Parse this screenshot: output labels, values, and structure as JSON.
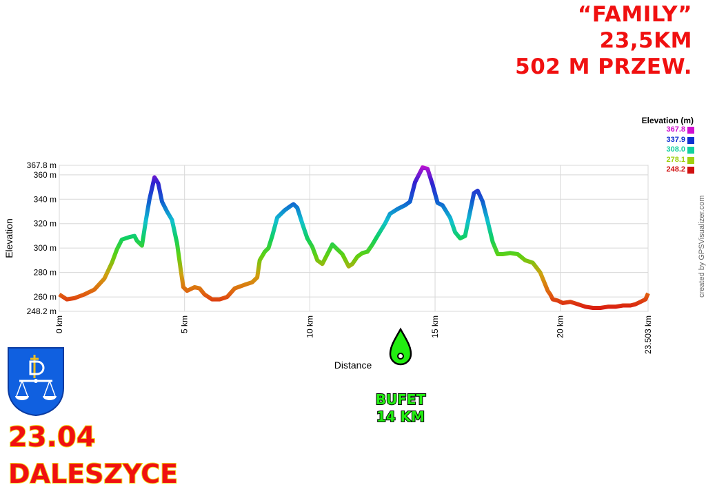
{
  "header": {
    "line1": "“FAMILY”",
    "line2": "23,5KM",
    "line3": "502 M PRZEW."
  },
  "legend": {
    "title": "Elevation (m)",
    "items": [
      {
        "label": "367.8",
        "color": "#d010d0"
      },
      {
        "label": "337.9",
        "color": "#1030d0"
      },
      {
        "label": "308.0",
        "color": "#10d0a0"
      },
      {
        "label": "278.1",
        "color": "#a0d010"
      },
      {
        "label": "248.2",
        "color": "#d01010"
      }
    ]
  },
  "watermark": "created by GPSVisualizer.com",
  "bufet": {
    "line1": "BUFET",
    "line2": "14 KM",
    "icon": "water-drop-icon",
    "color": "#22ee11"
  },
  "event": {
    "date": "23.04",
    "place": "DALESZYCE"
  },
  "chart_data": {
    "type": "line",
    "xlabel": "Distance",
    "ylabel": "Elevation",
    "xlim": [
      0,
      23.503
    ],
    "ylim": [
      248.2,
      367.8
    ],
    "x_ticks": [
      {
        "value": 0,
        "label": "0 km"
      },
      {
        "value": 5,
        "label": "5 km"
      },
      {
        "value": 10,
        "label": "10 km"
      },
      {
        "value": 15,
        "label": "15 km"
      },
      {
        "value": 20,
        "label": "20 km"
      },
      {
        "value": 23.503,
        "label": "23.503 km"
      }
    ],
    "y_ticks": [
      {
        "value": 248.2,
        "label": "248.2 m"
      },
      {
        "value": 260,
        "label": "260 m"
      },
      {
        "value": 280,
        "label": "280 m"
      },
      {
        "value": 300,
        "label": "300 m"
      },
      {
        "value": 320,
        "label": "320 m"
      },
      {
        "value": 340,
        "label": "340 m"
      },
      {
        "value": 360,
        "label": "360 m"
      },
      {
        "value": 367.8,
        "label": "367.8 m"
      }
    ],
    "grid": true,
    "series": [
      {
        "x": [
          0,
          0.3,
          0.6,
          1,
          1.4,
          1.8,
          2.1,
          2.3,
          2.5,
          2.8,
          3.0,
          3.1,
          3.3,
          3.45,
          3.6,
          3.8,
          3.95,
          4.1,
          4.3,
          4.5,
          4.7,
          4.85,
          4.95,
          5.1,
          5.4,
          5.6,
          5.8,
          6.1,
          6.4,
          6.7,
          7.0,
          7.4,
          7.7,
          7.9,
          8.0,
          8.2,
          8.35,
          8.5,
          8.7,
          9.0,
          9.2,
          9.35,
          9.5,
          9.7,
          9.9,
          10.1,
          10.3,
          10.5,
          10.7,
          10.9,
          11.1,
          11.3,
          11.55,
          11.7,
          11.9,
          12.1,
          12.3,
          12.5,
          12.7,
          13.0,
          13.2,
          13.5,
          13.8,
          14.0,
          14.2,
          14.5,
          14.7,
          14.9,
          15.1,
          15.3,
          15.6,
          15.8,
          16.0,
          16.2,
          16.4,
          16.55,
          16.7,
          16.9,
          17.1,
          17.3,
          17.5,
          17.7,
          18.0,
          18.3,
          18.6,
          18.9,
          19.2,
          19.4,
          19.5,
          19.6,
          19.7,
          19.9,
          20.1,
          20.4,
          20.7,
          21.0,
          21.3,
          21.6,
          21.9,
          22.2,
          22.5,
          22.8,
          23.0,
          23.2,
          23.4,
          23.503
        ],
        "y": [
          262,
          258,
          259,
          262,
          266,
          275,
          288,
          299,
          307,
          309,
          310,
          306,
          302,
          322,
          340,
          358,
          353,
          338,
          330,
          323,
          304,
          282,
          268,
          265,
          268,
          267,
          262,
          258,
          258,
          260,
          267,
          270,
          272,
          276,
          290,
          297,
          300,
          310,
          325,
          331,
          334,
          336,
          333,
          320,
          308,
          301,
          290,
          287,
          295,
          303,
          299,
          295,
          285,
          287,
          293,
          296,
          297,
          303,
          310,
          320,
          328,
          332,
          335,
          338,
          354,
          366,
          365,
          352,
          337,
          335,
          325,
          313,
          308,
          310,
          330,
          345,
          347,
          338,
          322,
          305,
          295,
          295,
          296,
          295,
          290,
          288,
          280,
          270,
          265,
          262,
          258,
          257,
          255,
          256,
          254,
          252,
          251,
          251,
          252,
          252,
          253,
          253,
          254,
          256,
          258,
          263
        ]
      }
    ]
  }
}
